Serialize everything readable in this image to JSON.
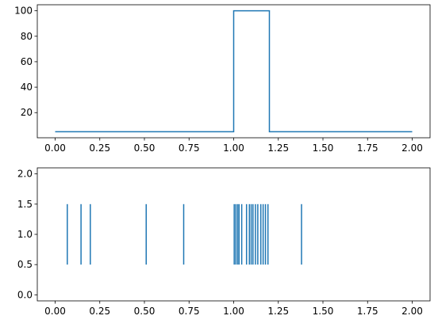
{
  "chart_data": [
    {
      "type": "line",
      "drawstyle": "step",
      "color": "#1f77b4",
      "xlim": [
        -0.1,
        2.1
      ],
      "ylim": [
        0.25,
        104.75
      ],
      "grid": false,
      "x_ticks": [
        0.0,
        0.25,
        0.5,
        0.75,
        1.0,
        1.25,
        1.5,
        1.75,
        2.0
      ],
      "x_tick_labels": [
        "0.00",
        "0.25",
        "0.50",
        "0.75",
        "1.00",
        "1.25",
        "1.50",
        "1.75",
        "2.00"
      ],
      "y_ticks": [
        20,
        40,
        60,
        80,
        100
      ],
      "y_tick_labels": [
        "20",
        "40",
        "60",
        "80",
        "100"
      ],
      "series": [
        {
          "x": [
            0.0,
            1.0,
            1.0,
            1.2,
            1.2,
            2.0
          ],
          "y": [
            5,
            5,
            100,
            100,
            5,
            5
          ]
        }
      ]
    },
    {
      "type": "eventplot",
      "color": "#1f77b4",
      "xlim": [
        -0.1,
        2.1
      ],
      "ylim": [
        -0.1,
        2.1
      ],
      "grid": false,
      "line_y_range": [
        0.5,
        1.5
      ],
      "x_ticks": [
        0.0,
        0.25,
        0.5,
        0.75,
        1.0,
        1.25,
        1.5,
        1.75,
        2.0
      ],
      "x_tick_labels": [
        "0.00",
        "0.25",
        "0.50",
        "0.75",
        "1.00",
        "1.25",
        "1.50",
        "1.75",
        "2.00"
      ],
      "y_ticks": [
        0.0,
        0.5,
        1.0,
        1.5,
        2.0
      ],
      "y_tick_labels": [
        "0.0",
        "0.5",
        "1.0",
        "1.5",
        "2.0"
      ],
      "events": [
        0.068,
        0.145,
        0.197,
        0.51,
        0.72,
        1.003,
        1.012,
        1.022,
        1.03,
        1.045,
        1.072,
        1.088,
        1.098,
        1.108,
        1.122,
        1.135,
        1.152,
        1.165,
        1.178,
        1.192,
        1.38
      ]
    }
  ]
}
